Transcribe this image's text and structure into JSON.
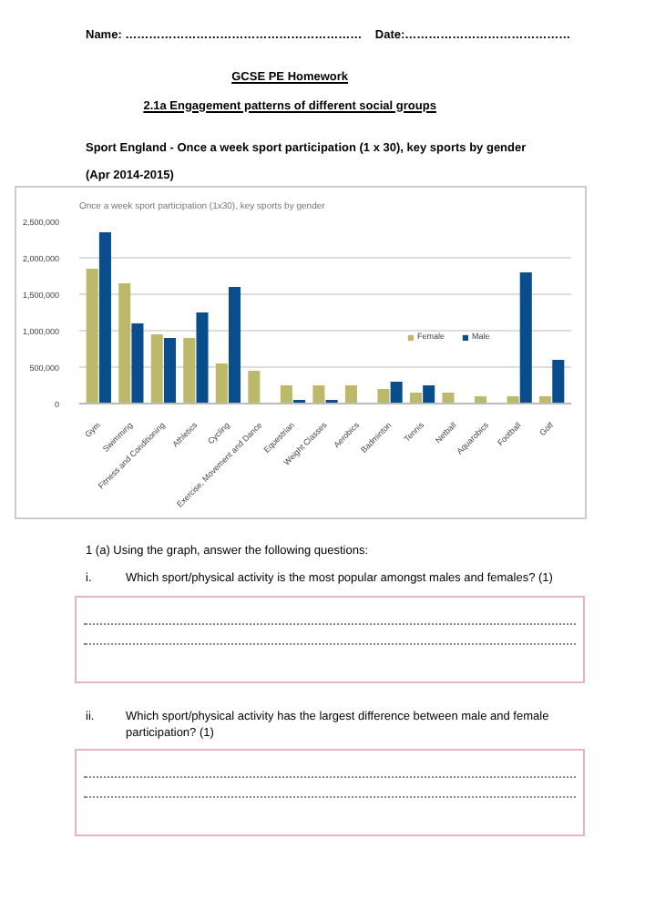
{
  "chart_data": {
    "type": "bar",
    "title": "Once a week sport participation (1x30), key sports by gender",
    "categories": [
      "Gym",
      "Swimming",
      "Fitness and Conditioning",
      "Athletics",
      "Cycling",
      "Exercise, Movement and Dance",
      "Equestrian",
      "Weight Classes",
      "Aerobics",
      "Badminton",
      "Tennis",
      "Netball",
      "Aquarobics",
      "Football",
      "Golf"
    ],
    "series": [
      {
        "name": "Female",
        "color": "#bdb96a",
        "values": [
          1850000,
          1650000,
          950000,
          900000,
          550000,
          450000,
          250000,
          250000,
          250000,
          200000,
          150000,
          150000,
          100000,
          100000,
          100000
        ]
      },
      {
        "name": "Male",
        "color": "#0a4d8c",
        "values": [
          2350000,
          1100000,
          900000,
          1250000,
          1600000,
          null,
          50000,
          50000,
          null,
          300000,
          250000,
          null,
          null,
          1800000,
          600000
        ]
      }
    ],
    "ylim": [
      0,
      2500000
    ],
    "yticks": [
      {
        "value": 0,
        "label": "0"
      },
      {
        "value": 500000,
        "label": "500,000"
      },
      {
        "value": 1000000,
        "label": "1,000,000"
      },
      {
        "value": 1500000,
        "label": "1,500,000"
      },
      {
        "value": 2000000,
        "label": "2,000,000"
      },
      {
        "value": 2500000,
        "label": "2,500,000"
      }
    ],
    "grid": "y",
    "legend": "bottom right",
    "annotations": [
      "Name: ……………………………………………………",
      "Date:……………………………………",
      "GCSE PE Homework",
      "2.1a Engagement patterns of different social groups",
      "Sport England - Once a week sport participation (1 x 30), key sports by gender",
      "(Apr 2014-2015)",
      "1 (a) Using the graph, answer the following questions:",
      "i.",
      "Which sport/physical activity is the most popular amongst males and females? (1)",
      "ii.",
      "Which sport/physical activity has the largest difference between male and female participation? (1)"
    ]
  }
}
